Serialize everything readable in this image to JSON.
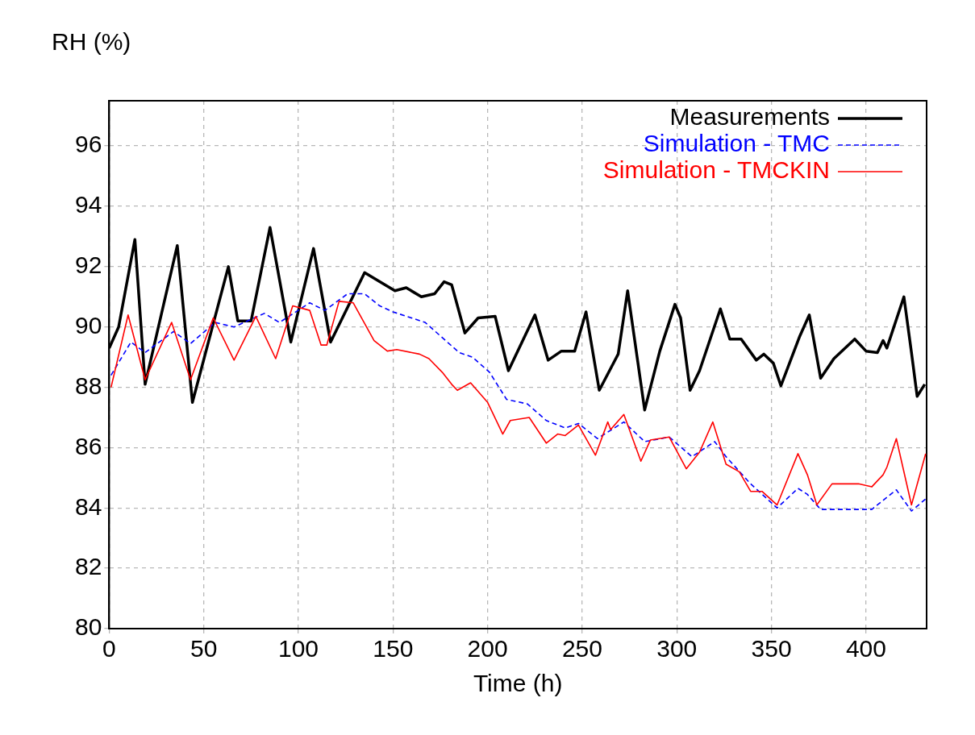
{
  "chart_data": {
    "type": "line",
    "xlabel": "Time (h)",
    "ylabel": "RH (%)",
    "xlim": [
      0,
      432
    ],
    "xticks": [
      0,
      50,
      100,
      150,
      200,
      250,
      300,
      350,
      400
    ],
    "ylim": [
      80,
      97.5
    ],
    "yticks": [
      80,
      82,
      84,
      86,
      88,
      90,
      92,
      94,
      96
    ],
    "grid": true,
    "legend": "top right",
    "marker": "none",
    "series": [
      {
        "name": "Measurements",
        "color": "#000000",
        "line_style": "solid",
        "x": [
          0,
          5,
          13.6,
          19,
          36,
          44,
          63,
          68,
          75,
          85,
          96,
          108,
          117,
          135,
          143,
          151,
          157,
          165,
          172,
          177,
          181,
          188,
          195,
          204,
          211,
          225,
          232,
          239,
          246,
          252,
          259,
          269,
          274,
          283,
          291,
          299,
          302,
          307,
          312,
          323,
          328,
          334,
          342,
          346,
          351,
          355,
          365,
          370,
          376,
          383,
          394,
          400,
          406,
          409,
          411,
          420,
          424,
          427,
          431
        ],
        "values": [
          89.3,
          90.0,
          92.9,
          88.1,
          92.7,
          87.5,
          92.0,
          90.2,
          90.2,
          93.3,
          89.5,
          92.6,
          89.5,
          91.8,
          91.5,
          91.2,
          91.3,
          91.0,
          91.1,
          91.5,
          91.4,
          89.8,
          90.3,
          90.35,
          88.55,
          90.4,
          88.9,
          89.2,
          89.2,
          90.5,
          87.9,
          89.1,
          91.2,
          87.25,
          89.2,
          90.75,
          90.3,
          87.9,
          88.55,
          90.6,
          89.6,
          89.6,
          88.9,
          89.1,
          88.8,
          88.05,
          89.7,
          90.4,
          88.3,
          88.95,
          89.6,
          89.2,
          89.15,
          89.55,
          89.3,
          91.0,
          89.15,
          87.7,
          88.1
        ]
      },
      {
        "name": "Simulation - TMC",
        "color": "#0000ff",
        "line_style": "dashed",
        "x": [
          1,
          11.5,
          19,
          34,
          43,
          56,
          66,
          82,
          90,
          106,
          114,
          126,
          135,
          143,
          150,
          167,
          185,
          192,
          201,
          210,
          221,
          231,
          241,
          248,
          258,
          272,
          283,
          296,
          308,
          320,
          326,
          339,
          353,
          364,
          369,
          376,
          396,
          403,
          416,
          424,
          431.5
        ],
        "values": [
          88.4,
          89.5,
          89.15,
          89.85,
          89.45,
          90.15,
          90.0,
          90.45,
          90.15,
          90.8,
          90.55,
          91.1,
          91.1,
          90.7,
          90.5,
          90.15,
          89.15,
          89.0,
          88.5,
          87.6,
          87.45,
          86.9,
          86.65,
          86.8,
          86.3,
          86.85,
          86.2,
          86.35,
          85.7,
          86.2,
          85.7,
          84.8,
          84.0,
          84.65,
          84.45,
          83.95,
          83.95,
          83.95,
          84.6,
          83.9,
          84.3
        ]
      },
      {
        "name": "Simulation - TMCKIN",
        "color": "#ff0000",
        "line_style": "solid",
        "x": [
          1,
          10,
          19,
          33,
          43,
          55,
          66,
          77.5,
          88,
          97,
          106,
          112,
          115,
          121.5,
          129,
          140,
          147,
          152,
          164,
          169,
          176,
          181,
          184,
          191,
          200,
          208,
          212,
          222,
          231,
          237,
          241,
          248,
          257,
          263.5,
          265,
          272,
          281,
          286,
          296,
          305,
          312,
          319,
          326,
          333,
          339,
          345,
          353,
          364,
          369,
          374,
          382,
          396,
          403,
          409,
          411,
          416,
          424,
          431.5
        ],
        "values": [
          88.0,
          90.4,
          88.25,
          90.15,
          88.25,
          90.3,
          88.9,
          90.35,
          88.95,
          90.7,
          90.55,
          89.4,
          89.4,
          90.85,
          90.8,
          89.55,
          89.2,
          89.25,
          89.1,
          88.95,
          88.5,
          88.1,
          87.9,
          88.15,
          87.5,
          86.45,
          86.9,
          87.0,
          86.15,
          86.45,
          86.4,
          86.75,
          85.75,
          86.85,
          86.6,
          87.1,
          85.55,
          86.25,
          86.35,
          85.3,
          85.85,
          86.85,
          85.45,
          85.2,
          84.55,
          84.55,
          84.1,
          85.8,
          85.1,
          84.1,
          84.8,
          84.8,
          84.7,
          85.1,
          85.35,
          86.3,
          84.1,
          85.8
        ]
      }
    ]
  }
}
